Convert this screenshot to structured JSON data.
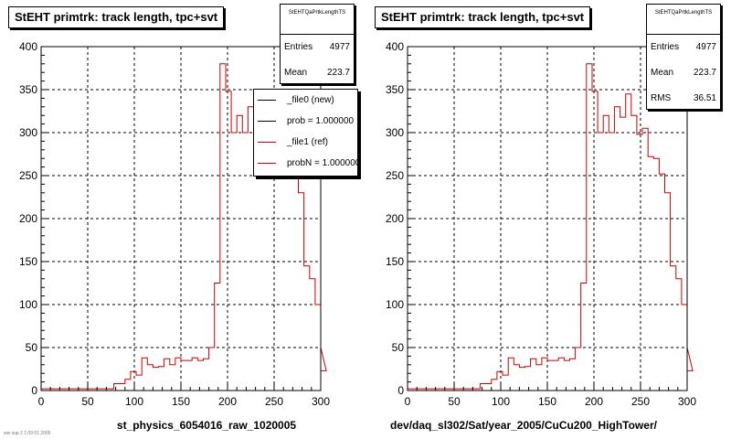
{
  "canvas": {
    "footer_text": "ww sup  2 1:09:01 2005"
  },
  "colors": {
    "new": "#000000",
    "ref": "#cc0000",
    "grid": "#000000",
    "frame": "#000000"
  },
  "chart_data": [
    {
      "type": "histogram",
      "title": "StEHT primtrk: track length, tpc+svt",
      "xlabel": "st_physics_6054016_raw_1020005",
      "ylabel": "",
      "xlim": [
        0,
        300
      ],
      "ylim": [
        0,
        400
      ],
      "xticks": [
        0,
        50,
        100,
        150,
        200,
        250,
        300
      ],
      "yticks": [
        0,
        50,
        100,
        150,
        200,
        250,
        300,
        350,
        400
      ],
      "grid": true,
      "stats": {
        "name": "StEHTQaPrtkLengthTS",
        "rows": [
          {
            "label": "Entries",
            "value": "4977"
          },
          {
            "label": "Mean",
            "value": "223.7"
          }
        ]
      },
      "legend": {
        "placement": "top-right",
        "entries": [
          {
            "label": "_file0 (new)",
            "color": "#000000"
          },
          {
            "label": "prob = 1.000000",
            "color": "#000000"
          },
          {
            "label": "_file1 (ref)",
            "color": "#cc0000"
          },
          {
            "label": "probN = 1.000000",
            "color": "#cc0000"
          }
        ]
      },
      "series": [
        {
          "bin_width": 6,
          "x_start": 0,
          "values": [
            2,
            2,
            2,
            2,
            2,
            2,
            2,
            2,
            2,
            2,
            2,
            2,
            2,
            8,
            8,
            13,
            22,
            18,
            38,
            30,
            27,
            28,
            37,
            30,
            38,
            35,
            35,
            38,
            35,
            37,
            50,
            125,
            380,
            348,
            300,
            320,
            300,
            330,
            318,
            345,
            320,
            298,
            305,
            272,
            270,
            252,
            230,
            145,
            130,
            100,
            50,
            23
          ]
        }
      ]
    },
    {
      "type": "histogram",
      "title": "StEHT primtrk: track length, tpc+svt",
      "xlabel": "dev/daq_sl302/Sat/year_2005/CuCu200_HighTower/",
      "ylabel": "",
      "xlim": [
        0,
        300
      ],
      "ylim": [
        0,
        400
      ],
      "xticks": [
        0,
        50,
        100,
        150,
        200,
        250,
        300
      ],
      "yticks": [
        0,
        50,
        100,
        150,
        200,
        250,
        300,
        350,
        400
      ],
      "grid": true,
      "stats": {
        "name": "StEHTQaPrtkLengthTS",
        "rows": [
          {
            "label": "Entries",
            "value": "4977"
          },
          {
            "label": "Mean",
            "value": "223.7"
          },
          {
            "label": "RMS",
            "value": "36.51"
          }
        ]
      },
      "legend": null,
      "series": [
        {
          "bin_width": 6,
          "x_start": 0,
          "values": [
            2,
            2,
            2,
            2,
            2,
            2,
            2,
            2,
            2,
            2,
            2,
            2,
            2,
            8,
            8,
            13,
            22,
            18,
            38,
            30,
            27,
            28,
            37,
            30,
            38,
            35,
            35,
            38,
            35,
            37,
            50,
            125,
            380,
            348,
            300,
            320,
            300,
            330,
            318,
            345,
            320,
            298,
            305,
            272,
            270,
            252,
            230,
            145,
            130,
            100,
            50,
            23
          ]
        }
      ]
    }
  ]
}
